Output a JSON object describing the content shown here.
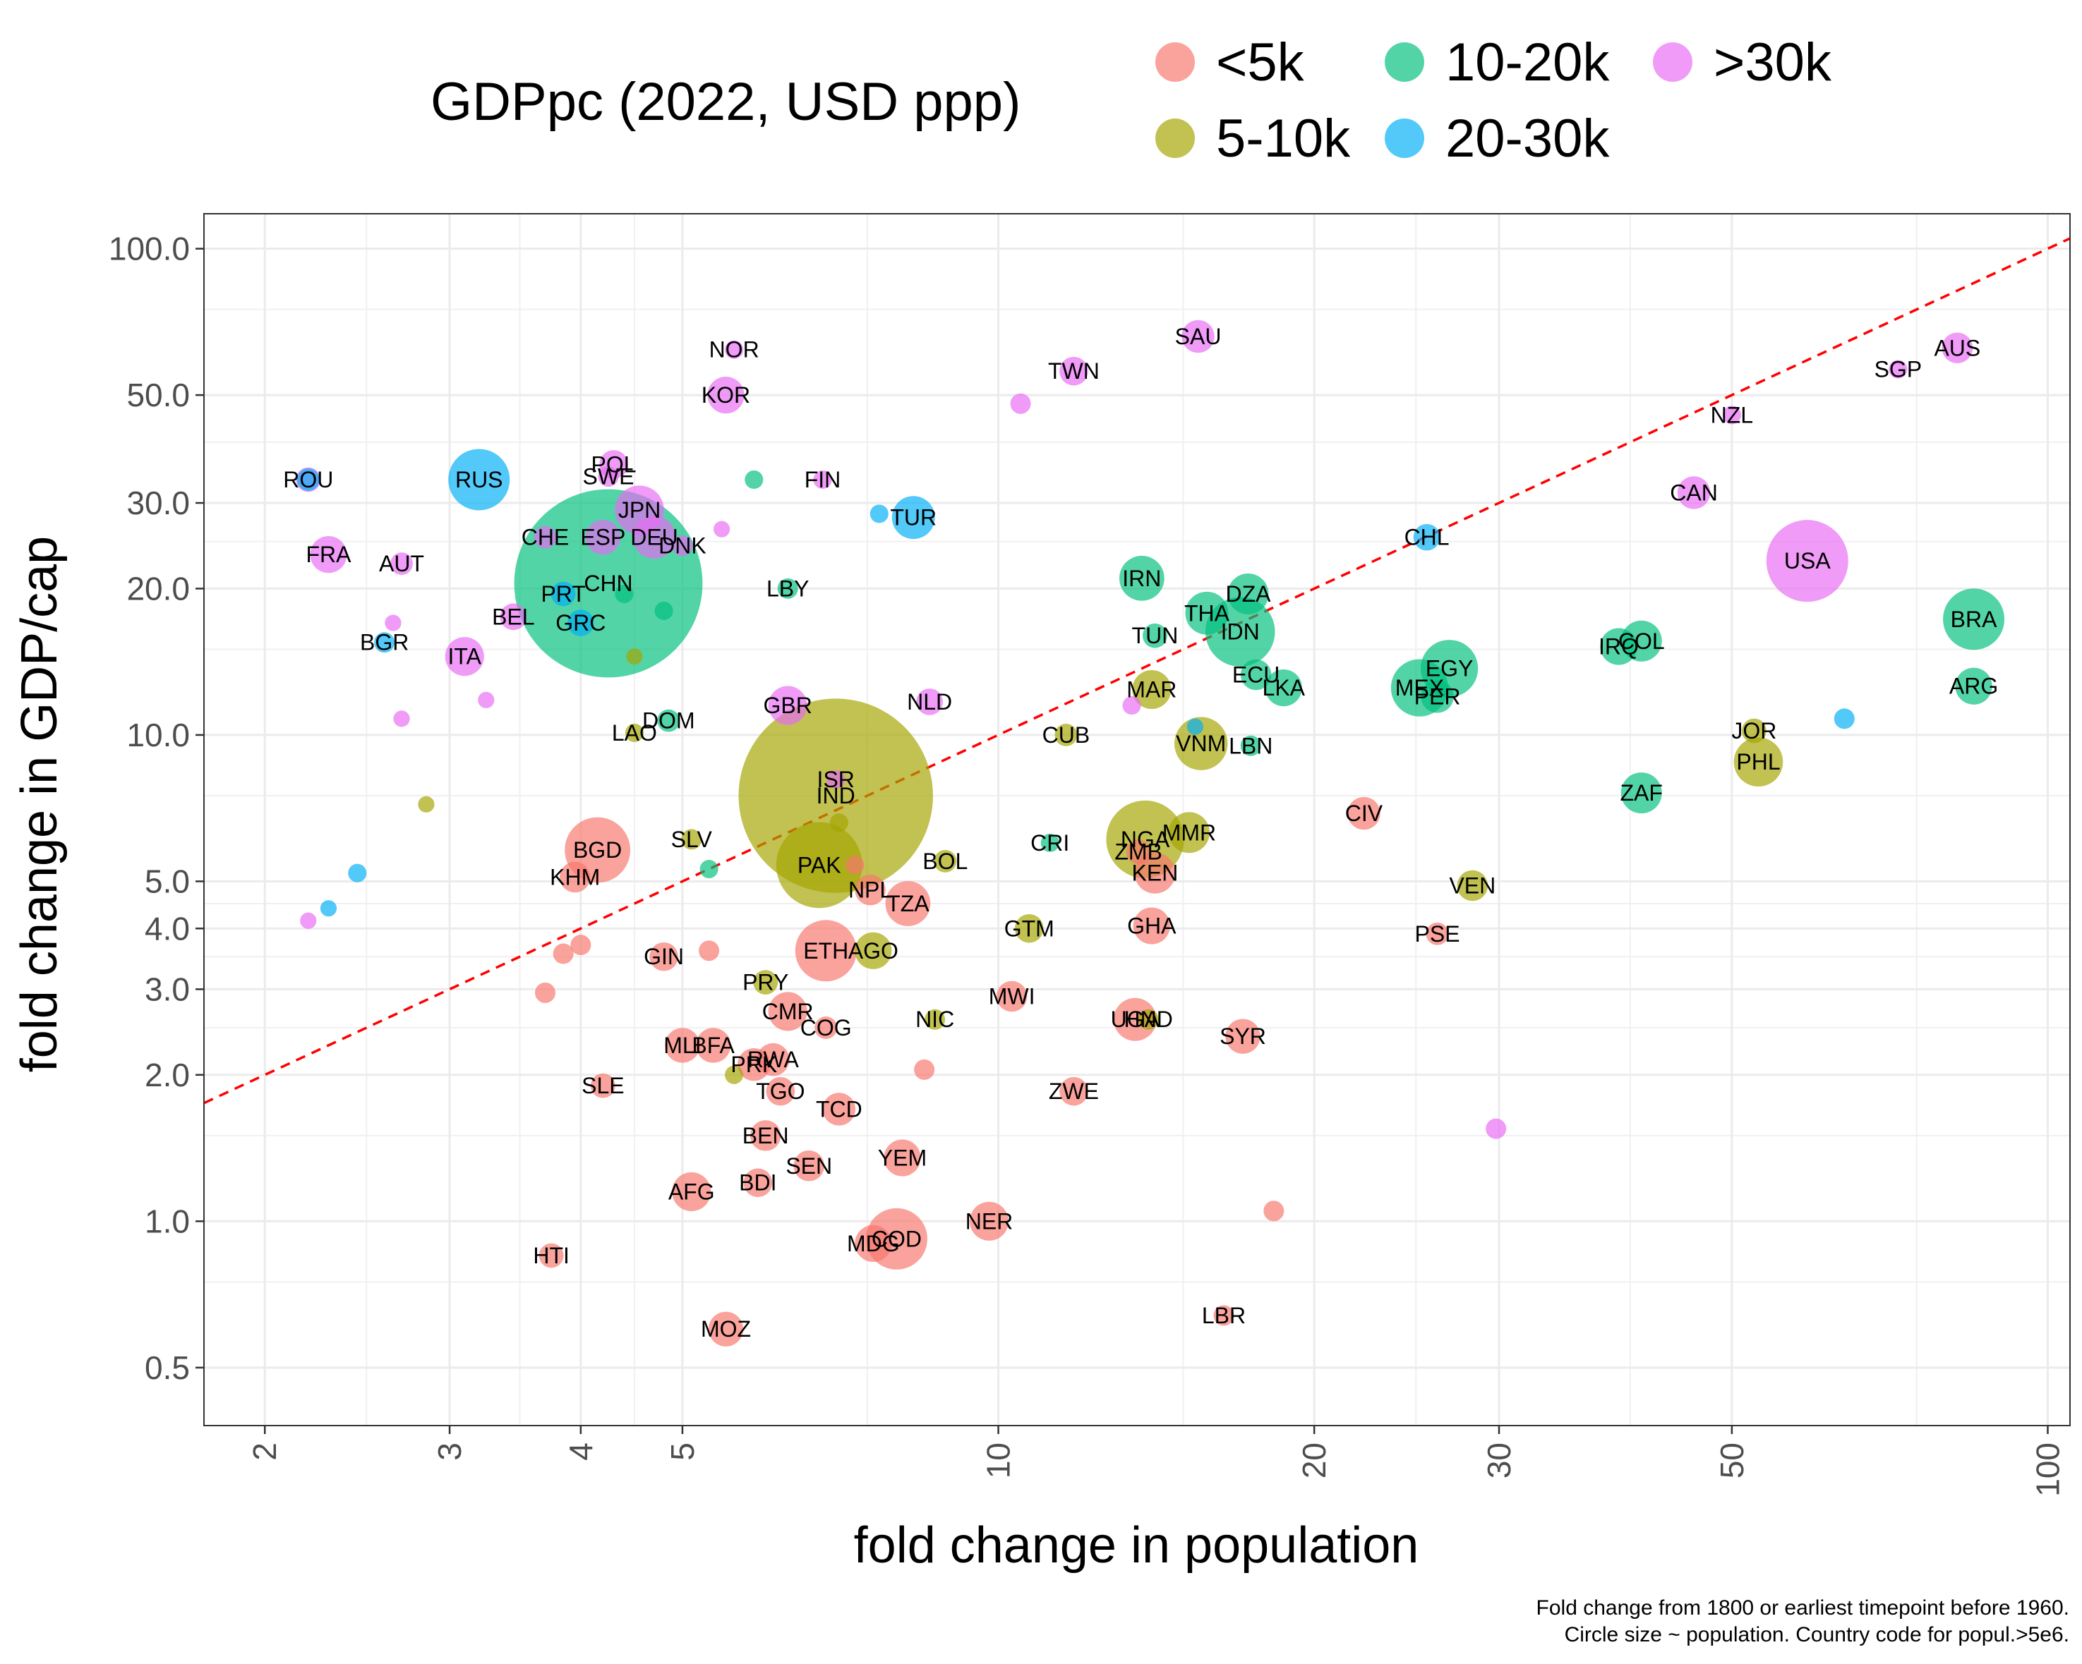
{
  "chart_data": {
    "type": "scatter",
    "xscale": "log",
    "yscale": "log",
    "xlabel": "fold change in population",
    "ylabel": "fold change in GDP/cap",
    "xlim": [
      1.75,
      105
    ],
    "ylim": [
      0.38,
      118
    ],
    "xticks": [
      2,
      3,
      4,
      5,
      10,
      20,
      30,
      50,
      100
    ],
    "yticks": [
      0.5,
      1.0,
      2.0,
      3.0,
      4.0,
      5.0,
      10.0,
      20.0,
      30.0,
      50.0,
      100.0
    ],
    "ytick_labels": [
      "0.5",
      "1.0",
      "2.0",
      "3.0",
      "4.0",
      "5.0",
      "10.0",
      "20.0",
      "30.0",
      "50.0",
      "100.0"
    ],
    "reference_line": {
      "style": "dashed",
      "color": "#ff0000",
      "description": "y = x"
    },
    "legend": {
      "title": "GDPpc (2022, USD ppp)",
      "position": "top",
      "entries": [
        {
          "label": "<5k",
          "color": "#F8766D"
        },
        {
          "label": "5-10k",
          "color": "#A3A500"
        },
        {
          "label": "10-20k",
          "color": "#00BF7D"
        },
        {
          "label": "20-30k",
          "color": "#00B0F6"
        },
        {
          "label": ">30k",
          "color": "#E76BF3"
        }
      ]
    },
    "caption": [
      "Fold change from 1800 or earliest timepoint before 1960.",
      "Circle size ~ population. Country code for popul.>5e6."
    ],
    "points": [
      {
        "label": "ROU",
        "x": 2.2,
        "y": 33.5,
        "group": ">30k"
      },
      {
        "label": "",
        "x": 2.2,
        "y": 33.5,
        "group": "20-30k",
        "size": 11
      },
      {
        "label": "RUS",
        "x": 3.2,
        "y": 33.5,
        "group": "20-30k",
        "size": 30
      },
      {
        "label": "POL",
        "x": 4.3,
        "y": 36,
        "group": ">30k",
        "size": 14
      },
      {
        "label": "SWE",
        "x": 4.25,
        "y": 34,
        "group": ">30k",
        "size": 10
      },
      {
        "label": "JPN",
        "x": 4.55,
        "y": 29,
        "group": ">30k",
        "size": 24
      },
      {
        "label": "CHE",
        "x": 3.7,
        "y": 25.5,
        "group": ">30k",
        "size": 11
      },
      {
        "label": "ESP",
        "x": 4.2,
        "y": 25.5,
        "group": ">30k",
        "size": 17
      },
      {
        "label": "DEU",
        "x": 4.7,
        "y": 25.5,
        "group": ">30k",
        "size": 21
      },
      {
        "label": "DNK",
        "x": 5.0,
        "y": 24.5,
        "group": ">30k",
        "size": 10
      },
      {
        "label": "",
        "x": 5.45,
        "y": 26.5,
        "group": ">30k",
        "size": 8
      },
      {
        "label": "FRA",
        "x": 2.3,
        "y": 23.5,
        "group": ">30k",
        "size": 18
      },
      {
        "label": "AUT",
        "x": 2.7,
        "y": 22.5,
        "group": ">30k",
        "size": 11
      },
      {
        "label": "PRT",
        "x": 3.85,
        "y": 19.5,
        "group": "20-30k",
        "size": 12
      },
      {
        "label": "CHN",
        "x": 4.25,
        "y": 20.5,
        "group": "10-20k",
        "size": 92
      },
      {
        "label": "",
        "x": 4.4,
        "y": 19.5,
        "group": "10-20k",
        "size": 9
      },
      {
        "label": "",
        "x": 4.8,
        "y": 18,
        "group": "10-20k",
        "size": 9
      },
      {
        "label": "BEL",
        "x": 3.45,
        "y": 17.5,
        "group": ">30k",
        "size": 13
      },
      {
        "label": "GRC",
        "x": 4.0,
        "y": 17,
        "group": "20-30k",
        "size": 13
      },
      {
        "label": "",
        "x": 2.65,
        "y": 17,
        "group": ">30k",
        "size": 8
      },
      {
        "label": "BGR",
        "x": 2.6,
        "y": 15.5,
        "group": "20-30k",
        "size": 10
      },
      {
        "label": "ITA",
        "x": 3.1,
        "y": 14.5,
        "group": ">30k",
        "size": 19
      },
      {
        "label": "",
        "x": 4.5,
        "y": 14.5,
        "group": "5-10k",
        "size": 8
      },
      {
        "label": "",
        "x": 3.25,
        "y": 11.8,
        "group": ">30k",
        "size": 8
      },
      {
        "label": "",
        "x": 2.7,
        "y": 10.8,
        "group": ">30k",
        "size": 8
      },
      {
        "label": "DOM",
        "x": 4.85,
        "y": 10.7,
        "group": "10-20k",
        "size": 11
      },
      {
        "label": "LAO",
        "x": 4.5,
        "y": 10.1,
        "group": "5-10k",
        "size": 9
      },
      {
        "label": "",
        "x": 2.85,
        "y": 7.2,
        "group": "5-10k",
        "size": 8
      },
      {
        "label": "",
        "x": 2.45,
        "y": 5.2,
        "group": "20-30k",
        "size": 9
      },
      {
        "label": "",
        "x": 2.3,
        "y": 4.4,
        "group": "20-30k",
        "size": 8
      },
      {
        "label": "",
        "x": 2.2,
        "y": 4.15,
        "group": ">30k",
        "size": 8
      },
      {
        "label": "NOR",
        "x": 5.6,
        "y": 62,
        "group": ">30k",
        "size": 9
      },
      {
        "label": "KOR",
        "x": 5.5,
        "y": 50,
        "group": ">30k",
        "size": 18
      },
      {
        "label": "",
        "x": 5.85,
        "y": 33.5,
        "group": "10-20k",
        "size": 9
      },
      {
        "label": "FIN",
        "x": 6.8,
        "y": 33.5,
        "group": ">30k",
        "size": 9
      },
      {
        "label": "",
        "x": 7.7,
        "y": 28.5,
        "group": "20-30k",
        "size": 9
      },
      {
        "label": "TUR",
        "x": 8.3,
        "y": 28,
        "group": "20-30k",
        "size": 21
      },
      {
        "label": "LBY",
        "x": 6.3,
        "y": 20,
        "group": "10-20k",
        "size": 10
      },
      {
        "label": "GBR",
        "x": 6.3,
        "y": 11.5,
        "group": ">30k",
        "size": 19
      },
      {
        "label": "NLD",
        "x": 8.6,
        "y": 11.7,
        "group": ">30k",
        "size": 13
      },
      {
        "label": "SAU",
        "x": 15.5,
        "y": 66,
        "group": ">30k",
        "size": 16
      },
      {
        "label": "TWN",
        "x": 11.8,
        "y": 56,
        "group": ">30k",
        "size": 14
      },
      {
        "label": "",
        "x": 10.5,
        "y": 48,
        "group": ">30k",
        "size": 10
      },
      {
        "label": "ISR",
        "x": 7.0,
        "y": 8.1,
        "group": ">30k",
        "size": 9
      },
      {
        "label": "IND",
        "x": 7.0,
        "y": 7.5,
        "group": "5-10k",
        "size": 95
      },
      {
        "label": "",
        "x": 7.05,
        "y": 6.6,
        "group": "5-10k",
        "size": 9
      },
      {
        "label": "SLV",
        "x": 5.1,
        "y": 6.1,
        "group": "5-10k",
        "size": 10
      },
      {
        "label": "BGD",
        "x": 4.15,
        "y": 5.8,
        "group": "<5k",
        "size": 32
      },
      {
        "label": "KHM",
        "x": 3.95,
        "y": 5.1,
        "group": "<5k",
        "size": 15
      },
      {
        "label": "",
        "x": 5.3,
        "y": 5.3,
        "group": "10-20k",
        "size": 9
      },
      {
        "label": "PAK",
        "x": 6.75,
        "y": 5.4,
        "group": "5-10k",
        "size": 42
      },
      {
        "label": "",
        "x": 7.3,
        "y": 5.4,
        "group": "<5k",
        "size": 9
      },
      {
        "label": "NPL",
        "x": 7.55,
        "y": 4.8,
        "group": "<5k",
        "size": 15
      },
      {
        "label": "TZA",
        "x": 8.2,
        "y": 4.5,
        "group": "<5k",
        "size": 22
      },
      {
        "label": "BOL",
        "x": 8.9,
        "y": 5.5,
        "group": "5-10k",
        "size": 11
      },
      {
        "label": "CRI",
        "x": 11.2,
        "y": 6.0,
        "group": "10-20k",
        "size": 9
      },
      {
        "label": "ZMB",
        "x": 13.6,
        "y": 5.75,
        "group": "<5k",
        "size": 12
      },
      {
        "label": "NGA",
        "x": 13.8,
        "y": 6.1,
        "group": "5-10k",
        "size": 38
      },
      {
        "label": "MMR",
        "x": 15.2,
        "y": 6.3,
        "group": "5-10k",
        "size": 20
      },
      {
        "label": "KEN",
        "x": 14.1,
        "y": 5.2,
        "group": "<5k",
        "size": 20
      },
      {
        "label": "CUB",
        "x": 11.6,
        "y": 10.0,
        "group": "5-10k",
        "size": 11
      },
      {
        "label": "",
        "x": 13.4,
        "y": 11.5,
        "group": ">30k",
        "size": 9
      },
      {
        "label": "MAR",
        "x": 14.0,
        "y": 12.4,
        "group": "5-10k",
        "size": 19
      },
      {
        "label": "VNM",
        "x": 15.6,
        "y": 9.6,
        "group": "5-10k",
        "size": 26
      },
      {
        "label": "",
        "x": 15.4,
        "y": 10.4,
        "group": "20-30k",
        "size": 8
      },
      {
        "label": "LBN",
        "x": 17.4,
        "y": 9.5,
        "group": "10-20k",
        "size": 10
      },
      {
        "label": "IRN",
        "x": 13.7,
        "y": 21,
        "group": "10-20k",
        "size": 22
      },
      {
        "label": "DZA",
        "x": 17.3,
        "y": 19.5,
        "group": "10-20k",
        "size": 20
      },
      {
        "label": "THA",
        "x": 15.8,
        "y": 17.8,
        "group": "10-20k",
        "size": 21
      },
      {
        "label": "IDN",
        "x": 17.0,
        "y": 16.3,
        "group": "10-20k",
        "size": 34
      },
      {
        "label": "TUN",
        "x": 14.1,
        "y": 16.0,
        "group": "10-20k",
        "size": 12
      },
      {
        "label": "ECU",
        "x": 17.6,
        "y": 13.3,
        "group": "10-20k",
        "size": 15
      },
      {
        "label": "LKA",
        "x": 18.7,
        "y": 12.5,
        "group": "10-20k",
        "size": 18
      },
      {
        "label": "GTM",
        "x": 10.7,
        "y": 4.0,
        "group": "5-10k",
        "size": 14
      },
      {
        "label": "GHA",
        "x": 14.0,
        "y": 4.05,
        "group": "<5k",
        "size": 18
      },
      {
        "label": "MWI",
        "x": 10.3,
        "y": 2.9,
        "group": "<5k",
        "size": 15
      },
      {
        "label": "UGA",
        "x": 13.5,
        "y": 2.6,
        "group": "<5k",
        "size": 21
      },
      {
        "label": "HND",
        "x": 13.9,
        "y": 2.6,
        "group": "5-10k",
        "size": 10
      },
      {
        "label": "NIC",
        "x": 8.7,
        "y": 2.6,
        "group": "5-10k",
        "size": 10
      },
      {
        "label": "",
        "x": 8.5,
        "y": 2.05,
        "group": "<5k",
        "size": 10
      },
      {
        "label": "ZWE",
        "x": 11.8,
        "y": 1.85,
        "group": "<5k",
        "size": 14
      },
      {
        "label": "SYR",
        "x": 17.1,
        "y": 2.4,
        "group": "<5k",
        "size": 17
      },
      {
        "label": "ETH",
        "x": 6.85,
        "y": 3.6,
        "group": "<5k",
        "size": 30
      },
      {
        "label": "AGO",
        "x": 7.6,
        "y": 3.6,
        "group": "5-10k",
        "size": 18
      },
      {
        "label": "GIN",
        "x": 4.8,
        "y": 3.5,
        "group": "<5k",
        "size": 14
      },
      {
        "label": "",
        "x": 3.85,
        "y": 3.55,
        "group": "<5k",
        "size": 10
      },
      {
        "label": "",
        "x": 4.0,
        "y": 3.7,
        "group": "<5k",
        "size": 10
      },
      {
        "label": "",
        "x": 5.3,
        "y": 3.6,
        "group": "<5k",
        "size": 10
      },
      {
        "label": "",
        "x": 3.7,
        "y": 2.95,
        "group": "<5k",
        "size": 10
      },
      {
        "label": "PRY",
        "x": 6.0,
        "y": 3.1,
        "group": "5-10k",
        "size": 12
      },
      {
        "label": "CMR",
        "x": 6.3,
        "y": 2.7,
        "group": "<5k",
        "size": 19
      },
      {
        "label": "COG",
        "x": 6.85,
        "y": 2.5,
        "group": "<5k",
        "size": 11
      },
      {
        "label": "MLI",
        "x": 5.0,
        "y": 2.3,
        "group": "<5k",
        "size": 17
      },
      {
        "label": "BFA",
        "x": 5.35,
        "y": 2.3,
        "group": "<5k",
        "size": 17
      },
      {
        "label": "PRK",
        "x": 5.85,
        "y": 2.1,
        "group": "<5k",
        "size": 16
      },
      {
        "label": "RWA",
        "x": 6.1,
        "y": 2.15,
        "group": "<5k",
        "size": 16
      },
      {
        "label": "",
        "x": 5.6,
        "y": 2.0,
        "group": "5-10k",
        "size": 9
      },
      {
        "label": "SLE",
        "x": 4.2,
        "y": 1.9,
        "group": "<5k",
        "size": 12
      },
      {
        "label": "TGO",
        "x": 6.2,
        "y": 1.85,
        "group": "<5k",
        "size": 14
      },
      {
        "label": "TCD",
        "x": 7.05,
        "y": 1.7,
        "group": "<5k",
        "size": 16
      },
      {
        "label": "BEN",
        "x": 6.0,
        "y": 1.5,
        "group": "<5k",
        "size": 15
      },
      {
        "label": "SEN",
        "x": 6.6,
        "y": 1.3,
        "group": "<5k",
        "size": 15
      },
      {
        "label": "YEM",
        "x": 8.1,
        "y": 1.35,
        "group": "<5k",
        "size": 18
      },
      {
        "label": "AFG",
        "x": 5.1,
        "y": 1.15,
        "group": "<5k",
        "size": 19
      },
      {
        "label": "BDI",
        "x": 5.9,
        "y": 1.2,
        "group": "<5k",
        "size": 14
      },
      {
        "label": "MDG",
        "x": 7.6,
        "y": 0.9,
        "group": "<5k",
        "size": 18
      },
      {
        "label": "COD",
        "x": 8.0,
        "y": 0.92,
        "group": "<5k",
        "size": 30
      },
      {
        "label": "NER",
        "x": 9.8,
        "y": 1.0,
        "group": "<5k",
        "size": 19
      },
      {
        "label": "HTI",
        "x": 3.75,
        "y": 0.85,
        "group": "<5k",
        "size": 12
      },
      {
        "label": "MOZ",
        "x": 5.5,
        "y": 0.6,
        "group": "<5k",
        "size": 17
      },
      {
        "label": "LBR",
        "x": 16.4,
        "y": 0.64,
        "group": "<5k",
        "size": 10
      },
      {
        "label": "",
        "x": 18.3,
        "y": 1.05,
        "group": "<5k",
        "size": 10
      },
      {
        "label": "CIV",
        "x": 22.3,
        "y": 6.9,
        "group": "<5k",
        "size": 16
      },
      {
        "label": "PSE",
        "x": 26.2,
        "y": 3.9,
        "group": "<5k",
        "size": 11
      },
      {
        "label": "VEN",
        "x": 28.3,
        "y": 4.9,
        "group": "5-10k",
        "size": 15
      },
      {
        "label": "",
        "x": 29.8,
        "y": 1.55,
        "group": ">30k",
        "size": 10
      },
      {
        "label": "CHL",
        "x": 25.6,
        "y": 25.5,
        "group": "20-30k",
        "size": 13
      },
      {
        "label": "MEX",
        "x": 25.2,
        "y": 12.5,
        "group": "10-20k",
        "size": 28
      },
      {
        "label": "PER",
        "x": 26.2,
        "y": 12.0,
        "group": "10-20k",
        "size": 16
      },
      {
        "label": "EGY",
        "x": 26.9,
        "y": 13.7,
        "group": "10-20k",
        "size": 28
      },
      {
        "label": "IRQ",
        "x": 39.0,
        "y": 15.2,
        "group": "10-20k",
        "size": 18
      },
      {
        "label": "COL",
        "x": 41.0,
        "y": 15.6,
        "group": "10-20k",
        "size": 20
      },
      {
        "label": "ZAF",
        "x": 41.0,
        "y": 7.6,
        "group": "10-20k",
        "size": 20
      },
      {
        "label": "JOR",
        "x": 52.5,
        "y": 10.2,
        "group": "5-10k",
        "size": 12
      },
      {
        "label": "PHL",
        "x": 53.0,
        "y": 8.8,
        "group": "5-10k",
        "size": 24
      },
      {
        "label": "",
        "x": 64.0,
        "y": 10.8,
        "group": "20-30k",
        "size": 10
      },
      {
        "label": "NZL",
        "x": 50.0,
        "y": 45.5,
        "group": ">30k",
        "size": 9
      },
      {
        "label": "CAN",
        "x": 46.0,
        "y": 31.5,
        "group": ">30k",
        "size": 16
      },
      {
        "label": "USA",
        "x": 59.0,
        "y": 22.8,
        "group": ">30k",
        "size": 40
      },
      {
        "label": "SGP",
        "x": 72.0,
        "y": 56.5,
        "group": ">30k",
        "size": 9
      },
      {
        "label": "AUS",
        "x": 82.0,
        "y": 62.5,
        "group": ">30k",
        "size": 15
      },
      {
        "label": "BRA",
        "x": 85.0,
        "y": 17.3,
        "group": "10-20k",
        "size": 30
      },
      {
        "label": "ARG",
        "x": 85.0,
        "y": 12.6,
        "group": "10-20k",
        "size": 18
      }
    ]
  }
}
